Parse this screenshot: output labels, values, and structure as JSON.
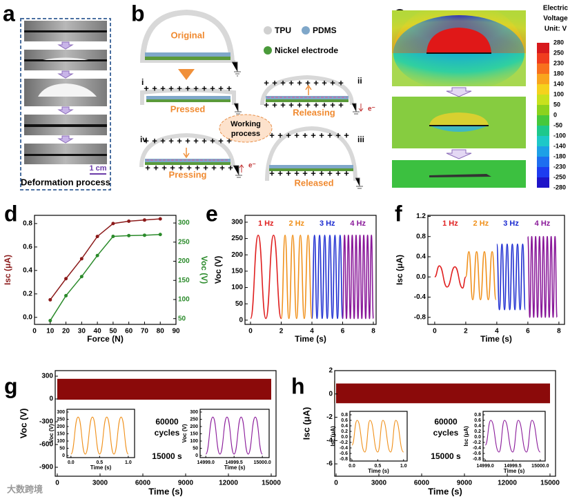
{
  "panel_a": {
    "letter": "a",
    "scale": "1 cm",
    "caption": "Deformation process"
  },
  "panel_b": {
    "letter": "b",
    "original": "Original",
    "legend": [
      "TPU",
      "PDMS",
      "Nickel electrode"
    ],
    "stages": [
      {
        "numeral": "i",
        "label": "Pressed"
      },
      {
        "numeral": "ii",
        "label": "Releasing"
      },
      {
        "numeral": "iii",
        "label": "Released"
      },
      {
        "numeral": "iv",
        "label": "Pressing"
      }
    ],
    "center": [
      "Working",
      "process"
    ],
    "electron": "e⁻",
    "plus": "+",
    "minus": "−"
  },
  "panel_c": {
    "letter": "c",
    "colorbar_title": [
      "Electric",
      "Voltage",
      "Unit: V"
    ],
    "colorbar_ticks": [
      280,
      250,
      230,
      180,
      140,
      100,
      50,
      0,
      -50,
      -100,
      -140,
      -180,
      -230,
      -250,
      -280
    ]
  },
  "watermark": "大数跨境",
  "chart_data": [
    {
      "panel": "d",
      "type": "line",
      "markers": true,
      "xlabel": "Force (N)",
      "ylabel": "Isc (μA)",
      "y2label": "Voc (V)",
      "xlim": [
        0,
        90
      ],
      "xticks": [
        0,
        10,
        20,
        30,
        40,
        50,
        60,
        70,
        80,
        90
      ],
      "ylim": [
        -0.06,
        0.87
      ],
      "yticks": [
        {
          "value": 0,
          "label": "0.0"
        },
        0.2,
        0.4,
        0.6,
        0.8
      ],
      "y2lim": [
        35,
        320
      ],
      "y2ticks": [
        50,
        100,
        150,
        200,
        250,
        300
      ],
      "series": [
        {
          "name": "Isc",
          "color": "#8b1a1a",
          "x": [
            10,
            20,
            30,
            40,
            50,
            60,
            70,
            80
          ],
          "values": [
            0.15,
            0.33,
            0.5,
            0.69,
            0.8,
            0.82,
            0.83,
            0.84
          ]
        },
        {
          "name": "Voc",
          "color": "#2a8a2a",
          "axis": "y2",
          "x": [
            10,
            20,
            30,
            40,
            50,
            60,
            70,
            80
          ],
          "values": [
            45,
            110,
            160,
            215,
            265,
            267,
            268,
            270
          ]
        }
      ]
    },
    {
      "panel": "e",
      "type": "line",
      "legend": "top",
      "xlabel": "Time (s)",
      "ylabel": "Voc (V)",
      "xlim": [
        -0.36,
        8.18
      ],
      "xticks": [
        0,
        2,
        4,
        6,
        8
      ],
      "ylim": [
        -13,
        321
      ],
      "yticks": [
        0,
        50,
        100,
        150,
        200,
        250,
        300
      ],
      "series": [
        {
          "name": "1 Hz",
          "color": "#e02020",
          "x": [
            0,
            0.5,
            1,
            1.5,
            2
          ],
          "values": [
            5,
            260,
            5,
            260,
            5
          ]
        },
        {
          "name": "2 Hz",
          "color": "#f0901a",
          "x": [
            2,
            2.25,
            2.5,
            2.75,
            3,
            3.25,
            3.5,
            3.75,
            4
          ],
          "values": [
            5,
            260,
            5,
            260,
            5,
            260,
            5,
            260,
            5
          ]
        },
        {
          "name": "3 Hz",
          "color": "#1a2ad0",
          "x": [
            4,
            4.167,
            4.333,
            4.5,
            4.667,
            4.833,
            5,
            5.167,
            5.333,
            5.5,
            5.667,
            5.833,
            6
          ],
          "values": [
            5,
            260,
            5,
            260,
            5,
            260,
            5,
            260,
            5,
            260,
            5,
            260,
            5
          ]
        },
        {
          "name": "4 Hz",
          "color": "#8a1a9a",
          "x": [
            6,
            6.125,
            6.25,
            6.375,
            6.5,
            6.625,
            6.75,
            6.875,
            7,
            7.125,
            7.25,
            7.375,
            7.5,
            7.625,
            7.75,
            7.875,
            8
          ],
          "values": [
            5,
            260,
            5,
            260,
            5,
            260,
            5,
            260,
            5,
            260,
            5,
            260,
            5,
            260,
            5,
            260,
            5
          ]
        }
      ]
    },
    {
      "panel": "f",
      "type": "line",
      "legend": "top",
      "xlabel": "Time (s)",
      "ylabel": "Isc (μA)",
      "xlim": [
        -0.44,
        8.36
      ],
      "xticks": [
        0,
        2,
        4,
        6,
        8
      ],
      "ylim": [
        -0.94,
        1.22
      ],
      "yticks": [
        -0.8,
        -0.4,
        {
          "value": 0,
          "label": "0.0"
        },
        0.4,
        0.8,
        1.2
      ],
      "series": [
        {
          "name": "1 Hz",
          "color": "#e02020",
          "x": [
            0,
            0.3,
            0.8,
            1.3,
            1.8,
            2
          ],
          "values": [
            0,
            0.22,
            -0.2,
            0.2,
            -0.22,
            0
          ]
        },
        {
          "name": "2 Hz",
          "color": "#f0901a",
          "x": [
            2,
            2.2,
            2.45,
            2.7,
            2.95,
            3.2,
            3.45,
            3.7,
            3.95
          ],
          "values": [
            0,
            0.5,
            -0.45,
            0.5,
            -0.45,
            0.5,
            -0.45,
            0.5,
            -0.45
          ]
        },
        {
          "name": "3 Hz",
          "color": "#1a2ad0",
          "x": [
            4,
            4.167,
            4.333,
            4.5,
            4.667,
            4.833,
            5,
            5.167,
            5.333,
            5.5,
            5.667,
            5.833
          ],
          "values": [
            0.65,
            -0.65,
            0.65,
            -0.65,
            0.65,
            -0.65,
            0.65,
            -0.65,
            0.65,
            -0.65,
            0.65,
            -0.65
          ]
        },
        {
          "name": "4 Hz",
          "color": "#8a1a9a",
          "x": [
            6,
            6.125,
            6.25,
            6.375,
            6.5,
            6.625,
            6.75,
            6.875,
            7,
            7.125,
            7.25,
            7.375,
            7.5,
            7.625,
            7.75,
            7.875
          ],
          "values": [
            0.8,
            -0.8,
            0.8,
            -0.8,
            0.8,
            -0.8,
            0.8,
            -0.8,
            0.8,
            -0.8,
            0.8,
            -0.8,
            0.8,
            -0.8,
            0.8,
            -0.8
          ]
        }
      ]
    },
    {
      "panel": "g",
      "type": "area",
      "xlabel": "Time (s)",
      "ylabel": "Voc (V)",
      "annotation": [
        "60000",
        "cycles",
        "15000 s"
      ],
      "xlim": [
        -145,
        15339
      ],
      "xticks": [
        0,
        3000,
        6000,
        9000,
        12000,
        15000
      ],
      "ylim": [
        -1018,
        373
      ],
      "yticks": [
        300,
        0,
        -300,
        -600,
        -900
      ],
      "series": [
        {
          "color": "#8b0a0a",
          "x": [
            0,
            15000
          ],
          "values": [
            265,
            265
          ],
          "low": [
            -10,
            -10
          ]
        }
      ]
    },
    {
      "type": "line",
      "xlabel": "Time (s)",
      "ylabel": "Voc (V)",
      "xlim": [
        -0.07,
        1.11
      ],
      "xticks": [
        {
          "value": 0,
          "label": "0.0"
        },
        0.5,
        {
          "value": 1,
          "label": "1.0"
        }
      ],
      "ylim": [
        -14,
        319
      ],
      "yticks": [
        0,
        50,
        100,
        150,
        200,
        250,
        300
      ],
      "series": [
        {
          "color": "#f0901a",
          "x": [
            0,
            0.125,
            0.25,
            0.375,
            0.5,
            0.625,
            0.75,
            0.875,
            1
          ],
          "values": [
            10,
            265,
            10,
            265,
            10,
            265,
            10,
            265,
            10
          ]
        }
      ]
    },
    {
      "type": "line",
      "xlabel": "Time (s)",
      "ylabel": "Voc (V)",
      "xlim": [
        14998.9,
        15000.12
      ],
      "xticks": [
        {
          "value": 14999,
          "label": "14999.0"
        },
        14999.5,
        {
          "value": 15000,
          "label": "15000.0"
        }
      ],
      "ylim": [
        -14,
        319
      ],
      "yticks": [
        0,
        50,
        100,
        150,
        200,
        250,
        300
      ],
      "series": [
        {
          "color": "#8a1a9a",
          "x": [
            14999,
            14999.125,
            14999.25,
            14999.375,
            14999.5,
            14999.625,
            14999.75,
            14999.875,
            15000
          ],
          "values": [
            10,
            265,
            10,
            265,
            10,
            265,
            10,
            265,
            10
          ]
        }
      ]
    },
    {
      "panel": "h",
      "type": "area",
      "xlabel": "Time (s)",
      "ylabel": "Isc (μA)",
      "annotation": [
        "60000",
        "cycles",
        "15000 s"
      ],
      "xlim": [
        -97,
        15387
      ],
      "xticks": [
        0,
        3000,
        6000,
        9000,
        12000,
        15000
      ],
      "ylim": [
        -7.06,
        2
      ],
      "yticks": [
        2,
        0,
        -2,
        -4,
        -6
      ],
      "series": [
        {
          "color": "#8b0a0a",
          "x": [
            0,
            15000
          ],
          "values": [
            0.9,
            0.9
          ],
          "low": [
            -0.8,
            -0.8
          ]
        }
      ]
    },
    {
      "type": "line",
      "xlabel": "Time (s)",
      "ylabel": "Isc (μA)",
      "xlim": [
        -0.04,
        1.07
      ],
      "xticks": [
        {
          "value": 0,
          "label": "0.0"
        },
        0.5,
        {
          "value": 1,
          "label": "1.0"
        }
      ],
      "ylim": [
        -0.875,
        0.925
      ],
      "yticks": [
        0.8,
        0.6,
        0.4,
        0.2,
        {
          "value": 0,
          "label": "0.0"
        },
        -0.2,
        -0.4,
        -0.6,
        -0.8
      ],
      "series": [
        {
          "color": "#f0901a",
          "x": [
            0,
            0.1,
            0.25,
            0.35,
            0.5,
            0.6,
            0.75,
            0.85,
            1
          ],
          "values": [
            -0.3,
            0.6,
            -0.55,
            0.6,
            -0.55,
            0.6,
            -0.55,
            0.6,
            -0.55
          ]
        }
      ]
    },
    {
      "type": "line",
      "xlabel": "Time (s)",
      "ylabel": "Isc (μA)",
      "xlim": [
        14998.96,
        15000.09
      ],
      "xticks": [
        {
          "value": 14999,
          "label": "14999.0"
        },
        14999.5,
        {
          "value": 15000,
          "label": "15000.0"
        }
      ],
      "ylim": [
        -0.875,
        0.925
      ],
      "yticks": [
        0.8,
        0.6,
        0.4,
        0.2,
        {
          "value": 0,
          "label": "0.0"
        },
        -0.2,
        -0.4,
        -0.6,
        -0.8
      ],
      "series": [
        {
          "color": "#8a1a9a",
          "x": [
            14999,
            14999.1,
            14999.25,
            14999.35,
            14999.5,
            14999.6,
            14999.75,
            14999.85,
            15000
          ],
          "values": [
            -0.3,
            0.6,
            -0.55,
            0.6,
            -0.55,
            0.6,
            -0.55,
            0.6,
            -0.55
          ]
        }
      ]
    }
  ]
}
